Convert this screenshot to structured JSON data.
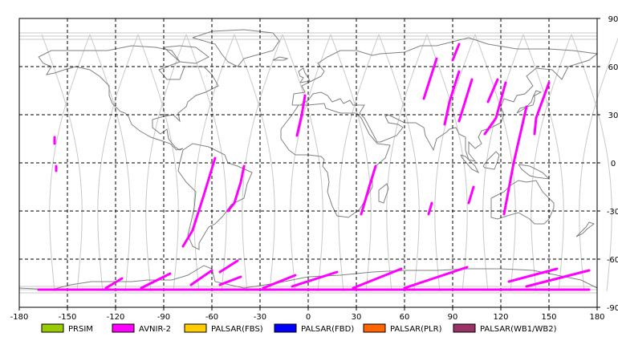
{
  "map": {
    "projection": "equirectangular",
    "background": "#ffffff",
    "frame_color": "#000000",
    "x_range": [
      -180,
      180
    ],
    "y_range": [
      -90,
      90
    ],
    "x_ticks": [
      -180,
      -150,
      -120,
      -90,
      -60,
      -30,
      0,
      30,
      60,
      90,
      120,
      150,
      180
    ],
    "y_ticks": [
      90,
      60,
      30,
      0,
      -30,
      -60,
      -90
    ],
    "x_tick_labels": [
      "-180",
      "-150",
      "-120",
      "-90",
      "-60",
      "-30",
      "0",
      "30",
      "60",
      "90",
      "120",
      "150",
      "180"
    ],
    "y_tick_labels": [
      "90",
      "60",
      "30",
      "0",
      "-30",
      "-60",
      "-90"
    ],
    "grid": "dashed",
    "grid_color": "#000000",
    "coastline_color": "#808080",
    "orbit_track_color": "#c8c8c8",
    "orbit_ascending_lons": [
      -155,
      -125,
      -95,
      -65,
      -35,
      -5,
      25,
      55,
      85,
      115,
      145,
      175
    ]
  },
  "legend": [
    {
      "label": "PRSIM",
      "color": "#99cc00"
    },
    {
      "label": "AVNIR-2",
      "color": "#ff00ff"
    },
    {
      "label": "PALSAR(FBS)",
      "color": "#ffcc00"
    },
    {
      "label": "PALSAR(FBD)",
      "color": "#0000ff"
    },
    {
      "label": "PALSAR(PLR)",
      "color": "#ff6600"
    },
    {
      "label": "PALSAR(WB1/WB2)",
      "color": "#993366"
    }
  ],
  "observations": {
    "sensor": "AVNIR-2",
    "color": "#ff00ff",
    "segments": [
      [
        [
          -158,
          16
        ],
        [
          -158,
          12
        ]
      ],
      [
        [
          -157,
          -2
        ],
        [
          -157,
          -5
        ]
      ],
      [
        [
          -58,
          3
        ],
        [
          -65,
          -20
        ],
        [
          -72,
          -42
        ],
        [
          -78,
          -52
        ]
      ],
      [
        [
          -40,
          -2
        ],
        [
          -42,
          -12
        ],
        [
          -46,
          -25
        ],
        [
          -50,
          -30
        ]
      ],
      [
        [
          -2,
          42
        ],
        [
          -4,
          30
        ],
        [
          -7,
          17
        ]
      ],
      [
        [
          42,
          -2
        ],
        [
          38,
          -15
        ],
        [
          33,
          -32
        ]
      ],
      [
        [
          77,
          -25
        ],
        [
          75,
          -32
        ]
      ],
      [
        [
          80,
          65
        ],
        [
          72,
          40
        ]
      ],
      [
        [
          94,
          74
        ],
        [
          90,
          64
        ]
      ],
      [
        [
          94,
          57
        ],
        [
          88,
          38
        ],
        [
          85,
          24
        ]
      ],
      [
        [
          102,
          52
        ],
        [
          94,
          26
        ]
      ],
      [
        [
          123,
          50
        ],
        [
          117,
          28
        ],
        [
          110,
          18
        ]
      ],
      [
        [
          118,
          52
        ],
        [
          112,
          38
        ]
      ],
      [
        [
          103,
          -15
        ],
        [
          100,
          -25
        ]
      ],
      [
        [
          136,
          35
        ],
        [
          128,
          0
        ],
        [
          122,
          -32
        ]
      ],
      [
        [
          150,
          50
        ],
        [
          142,
          28
        ],
        [
          141,
          18
        ]
      ],
      [
        [
          -126,
          -78
        ],
        [
          -116,
          -72
        ]
      ],
      [
        [
          -104,
          -78
        ],
        [
          -86,
          -69
        ]
      ],
      [
        [
          -73,
          -76
        ],
        [
          -60,
          -67
        ]
      ],
      [
        [
          -55,
          -68
        ],
        [
          -44,
          -61
        ]
      ],
      [
        [
          -55,
          -76
        ],
        [
          -42,
          -71
        ]
      ],
      [
        [
          -28,
          -78
        ],
        [
          -8,
          -70
        ]
      ],
      [
        [
          -10,
          -77
        ],
        [
          18,
          -68
        ]
      ],
      [
        [
          28,
          -78
        ],
        [
          58,
          -66
        ]
      ],
      [
        [
          60,
          -78
        ],
        [
          99,
          -65
        ]
      ],
      [
        [
          125,
          -74
        ],
        [
          155,
          -66
        ]
      ],
      [
        [
          136,
          -77
        ],
        [
          175,
          -67
        ]
      ],
      [
        [
          -168,
          -79
        ],
        [
          175,
          -79
        ]
      ]
    ]
  }
}
